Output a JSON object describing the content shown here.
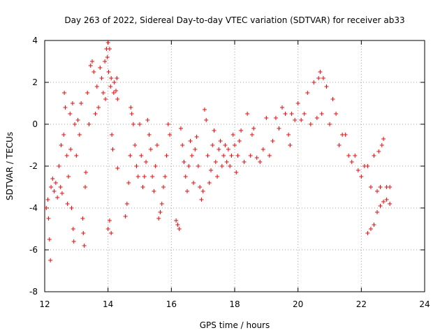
{
  "chart_data": {
    "type": "scatter",
    "title": "Day 263 of 2022, Sidereal Day-to-day VTEC variation (SDTVAR) for receiver ab33",
    "xlabel": "GPS time / hours",
    "ylabel": "SDTVAR / TECUs",
    "xlim": [
      12,
      24
    ],
    "ylim": [
      -8,
      4
    ],
    "xticks": [
      12,
      14,
      16,
      18,
      20,
      22,
      24
    ],
    "yticks": [
      -8,
      -6,
      -4,
      -2,
      0,
      2,
      4
    ],
    "xtick_labels": [
      "12",
      "14",
      "16",
      "18",
      "20",
      "22",
      "24"
    ],
    "ytick_labels": [
      "-8",
      "-6",
      "-4",
      "-2",
      "0",
      "2",
      "4"
    ],
    "grid": true,
    "marker": "+",
    "color": "#ff0000",
    "series": [
      {
        "name": "ab33",
        "points": [
          [
            12.05,
            -4.0
          ],
          [
            12.1,
            -3.6
          ],
          [
            12.12,
            -4.5
          ],
          [
            12.15,
            -5.5
          ],
          [
            12.18,
            -6.5
          ],
          [
            12.2,
            -3.0
          ],
          [
            12.25,
            -2.6
          ],
          [
            12.3,
            -3.2
          ],
          [
            12.35,
            -2.8
          ],
          [
            12.4,
            -3.5
          ],
          [
            12.45,
            -2.0
          ],
          [
            12.5,
            -3.0
          ],
          [
            12.52,
            -1.0
          ],
          [
            12.55,
            -3.3
          ],
          [
            12.6,
            -0.5
          ],
          [
            12.62,
            1.5
          ],
          [
            12.65,
            0.8
          ],
          [
            12.7,
            -1.5
          ],
          [
            12.72,
            -3.8
          ],
          [
            12.75,
            -2.5
          ],
          [
            12.8,
            0.5
          ],
          [
            12.82,
            -1.2
          ],
          [
            12.85,
            -4.0
          ],
          [
            12.88,
            1.0
          ],
          [
            12.9,
            -5.0
          ],
          [
            12.92,
            -5.6
          ],
          [
            12.95,
            0.0
          ],
          [
            13.0,
            -1.5
          ],
          [
            13.05,
            0.2
          ],
          [
            13.1,
            -0.5
          ],
          [
            13.15,
            1.0
          ],
          [
            13.2,
            -4.5
          ],
          [
            13.22,
            -5.2
          ],
          [
            13.25,
            -5.8
          ],
          [
            13.28,
            -3.0
          ],
          [
            13.3,
            -2.3
          ],
          [
            13.35,
            1.5
          ],
          [
            13.4,
            0.0
          ],
          [
            13.45,
            2.8
          ],
          [
            13.5,
            3.0
          ],
          [
            13.55,
            2.5
          ],
          [
            13.6,
            0.5
          ],
          [
            13.65,
            1.8
          ],
          [
            13.7,
            0.8
          ],
          [
            13.75,
            2.7
          ],
          [
            13.8,
            2.2
          ],
          [
            13.85,
            1.5
          ],
          [
            13.9,
            3.0
          ],
          [
            13.92,
            1.2
          ],
          [
            13.95,
            3.6
          ],
          [
            13.98,
            3.2
          ],
          [
            14.0,
            3.9
          ],
          [
            14.02,
            2.5
          ],
          [
            14.05,
            3.6
          ],
          [
            14.08,
            1.8
          ],
          [
            14.1,
            2.2
          ],
          [
            14.12,
            -0.5
          ],
          [
            14.15,
            -1.2
          ],
          [
            14.18,
            1.5
          ],
          [
            14.2,
            2.0
          ],
          [
            14.25,
            1.6
          ],
          [
            14.28,
            2.2
          ],
          [
            14.3,
            1.2
          ],
          [
            14.0,
            -5.0
          ],
          [
            14.05,
            -4.6
          ],
          [
            14.1,
            -5.2
          ],
          [
            14.3,
            -2.1
          ],
          [
            14.55,
            -4.4
          ],
          [
            14.6,
            -3.8
          ],
          [
            14.65,
            -2.8
          ],
          [
            14.7,
            -1.5
          ],
          [
            14.72,
            0.8
          ],
          [
            14.75,
            0.5
          ],
          [
            14.8,
            0.0
          ],
          [
            14.85,
            -1.0
          ],
          [
            14.9,
            -2.0
          ],
          [
            14.95,
            -2.5
          ],
          [
            15.0,
            0.0
          ],
          [
            15.05,
            -1.5
          ],
          [
            15.1,
            -3.0
          ],
          [
            15.15,
            -2.5
          ],
          [
            15.2,
            -1.8
          ],
          [
            15.25,
            0.2
          ],
          [
            15.3,
            -0.5
          ],
          [
            15.35,
            -1.2
          ],
          [
            15.4,
            -2.5
          ],
          [
            15.45,
            -3.2
          ],
          [
            15.5,
            -2.0
          ],
          [
            15.55,
            -1.0
          ],
          [
            15.6,
            -4.5
          ],
          [
            15.65,
            -4.2
          ],
          [
            15.7,
            -3.8
          ],
          [
            15.75,
            -3.0
          ],
          [
            15.8,
            -2.5
          ],
          [
            15.85,
            -1.5
          ],
          [
            15.9,
            0.0
          ],
          [
            15.95,
            -0.5
          ],
          [
            16.15,
            -4.6
          ],
          [
            16.2,
            -4.8
          ],
          [
            16.25,
            -5.0
          ],
          [
            16.3,
            -0.2
          ],
          [
            16.35,
            -1.0
          ],
          [
            16.4,
            -1.8
          ],
          [
            16.45,
            -2.5
          ],
          [
            16.5,
            -3.2
          ],
          [
            16.55,
            -2.0
          ],
          [
            16.6,
            -0.8
          ],
          [
            16.65,
            -1.5
          ],
          [
            16.7,
            -2.8
          ],
          [
            16.75,
            -1.2
          ],
          [
            16.8,
            -0.6
          ],
          [
            16.85,
            -2.0
          ],
          [
            16.9,
            -3.0
          ],
          [
            16.95,
            -3.6
          ],
          [
            17.0,
            -3.2
          ],
          [
            17.05,
            0.7
          ],
          [
            17.1,
            0.2
          ],
          [
            17.15,
            -1.5
          ],
          [
            17.2,
            -2.8
          ],
          [
            17.25,
            -2.2
          ],
          [
            17.3,
            -1.0
          ],
          [
            17.35,
            -0.3
          ],
          [
            17.4,
            -1.8
          ],
          [
            17.45,
            -2.5
          ],
          [
            17.5,
            -1.2
          ],
          [
            17.55,
            -0.8
          ],
          [
            17.6,
            -2.0
          ],
          [
            17.65,
            -1.5
          ],
          [
            17.7,
            -1.0
          ],
          [
            17.75,
            -1.8
          ],
          [
            17.8,
            -1.2
          ],
          [
            17.85,
            -2.0
          ],
          [
            17.9,
            -1.5
          ],
          [
            17.95,
            -0.5
          ],
          [
            18.0,
            -1.0
          ],
          [
            18.05,
            -2.3
          ],
          [
            18.1,
            -1.5
          ],
          [
            18.15,
            -0.8
          ],
          [
            18.2,
            -0.3
          ],
          [
            18.3,
            -1.8
          ],
          [
            18.4,
            0.5
          ],
          [
            18.5,
            -1.5
          ],
          [
            18.55,
            -0.5
          ],
          [
            18.6,
            -0.2
          ],
          [
            18.7,
            -1.6
          ],
          [
            18.8,
            -1.8
          ],
          [
            18.9,
            -1.2
          ],
          [
            19.0,
            0.3
          ],
          [
            19.1,
            -1.5
          ],
          [
            19.2,
            -0.8
          ],
          [
            19.3,
            0.3
          ],
          [
            19.4,
            -0.2
          ],
          [
            19.5,
            0.8
          ],
          [
            19.6,
            0.5
          ],
          [
            19.7,
            -0.5
          ],
          [
            19.75,
            -1.0
          ],
          [
            19.8,
            0.5
          ],
          [
            19.9,
            0.2
          ],
          [
            20.0,
            1.0
          ],
          [
            20.1,
            0.2
          ],
          [
            20.2,
            0.5
          ],
          [
            20.3,
            1.5
          ],
          [
            20.4,
            0.0
          ],
          [
            20.5,
            2.0
          ],
          [
            20.6,
            0.3
          ],
          [
            20.65,
            2.2
          ],
          [
            20.7,
            2.5
          ],
          [
            20.75,
            0.5
          ],
          [
            20.8,
            2.2
          ],
          [
            20.9,
            1.8
          ],
          [
            21.0,
            0.0
          ],
          [
            21.1,
            1.2
          ],
          [
            21.2,
            0.5
          ],
          [
            21.3,
            -1.0
          ],
          [
            21.4,
            -0.5
          ],
          [
            21.5,
            -0.5
          ],
          [
            21.6,
            -1.5
          ],
          [
            21.7,
            -1.8
          ],
          [
            21.8,
            -1.5
          ],
          [
            21.9,
            -2.2
          ],
          [
            22.0,
            -2.5
          ],
          [
            22.1,
            -2.0
          ],
          [
            22.2,
            -2.0
          ],
          [
            22.3,
            -3.0
          ],
          [
            22.4,
            -1.5
          ],
          [
            22.5,
            -3.2
          ],
          [
            22.55,
            -1.3
          ],
          [
            22.6,
            -3.0
          ],
          [
            22.65,
            -1.0
          ],
          [
            22.7,
            -0.7
          ],
          [
            22.8,
            -3.0
          ],
          [
            22.9,
            -3.0
          ],
          [
            22.2,
            -5.2
          ],
          [
            22.3,
            -5.0
          ],
          [
            22.4,
            -4.8
          ],
          [
            22.5,
            -4.2
          ],
          [
            22.6,
            -3.9
          ],
          [
            22.7,
            -3.7
          ],
          [
            22.8,
            -3.6
          ],
          [
            22.9,
            -3.8
          ]
        ]
      }
    ]
  }
}
